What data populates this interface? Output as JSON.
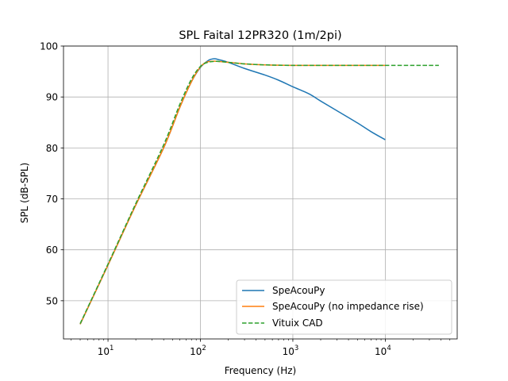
{
  "chart_data": {
    "type": "line",
    "title": "SPL Faital 12PR320 (1m/2pi)",
    "xlabel": "Frequency (Hz)",
    "ylabel": "SPL (dB-SPL)",
    "xscale": "log",
    "xlim": [
      3.3,
      60000
    ],
    "ylim": [
      42.5,
      100
    ],
    "grid": true,
    "legend_position": "lower-right",
    "x_ticks": [
      {
        "base": "10",
        "exp": "1",
        "value": 10
      },
      {
        "base": "10",
        "exp": "2",
        "value": 100
      },
      {
        "base": "10",
        "exp": "3",
        "value": 1000
      },
      {
        "base": "10",
        "exp": "4",
        "value": 10000
      }
    ],
    "y_ticks": [
      "50",
      "60",
      "70",
      "80",
      "90",
      "100"
    ],
    "series": [
      {
        "name": "SpeAcouPy",
        "color": "#1f77b4",
        "style": "solid",
        "points": [
          [
            5,
            45.4
          ],
          [
            10,
            57.0
          ],
          [
            20,
            68.8
          ],
          [
            40,
            80.0
          ],
          [
            60,
            88.0
          ],
          [
            80,
            93.0
          ],
          [
            100,
            95.8
          ],
          [
            120,
            97.1
          ],
          [
            140,
            97.5
          ],
          [
            160,
            97.3
          ],
          [
            200,
            96.8
          ],
          [
            300,
            95.6
          ],
          [
            500,
            94.3
          ],
          [
            700,
            93.3
          ],
          [
            1000,
            92.0
          ],
          [
            1500,
            90.6
          ],
          [
            2000,
            89.2
          ],
          [
            3000,
            87.3
          ],
          [
            5000,
            84.9
          ],
          [
            7000,
            83.2
          ],
          [
            10000,
            81.6
          ]
        ]
      },
      {
        "name": "SpeAcouPy (no impedance rise)",
        "color": "#ff7f0e",
        "style": "solid",
        "points": [
          [
            5,
            45.4
          ],
          [
            10,
            57.0
          ],
          [
            20,
            68.8
          ],
          [
            40,
            80.0
          ],
          [
            60,
            88.0
          ],
          [
            80,
            93.0
          ],
          [
            100,
            95.9
          ],
          [
            120,
            96.9
          ],
          [
            150,
            97.0
          ],
          [
            200,
            96.8
          ],
          [
            300,
            96.5
          ],
          [
            500,
            96.3
          ],
          [
            1000,
            96.2
          ],
          [
            3000,
            96.2
          ],
          [
            10000,
            96.2
          ]
        ]
      },
      {
        "name": "Vituix CAD",
        "color": "#2ca02c",
        "style": "dashed",
        "points": [
          [
            5,
            45.5
          ],
          [
            10,
            57.2
          ],
          [
            20,
            69.1
          ],
          [
            40,
            80.6
          ],
          [
            60,
            88.6
          ],
          [
            80,
            93.5
          ],
          [
            100,
            96.0
          ],
          [
            120,
            96.8
          ],
          [
            150,
            97.0
          ],
          [
            200,
            96.8
          ],
          [
            300,
            96.5
          ],
          [
            500,
            96.3
          ],
          [
            1000,
            96.2
          ],
          [
            3000,
            96.2
          ],
          [
            10000,
            96.2
          ],
          [
            38000,
            96.2
          ]
        ]
      }
    ]
  }
}
